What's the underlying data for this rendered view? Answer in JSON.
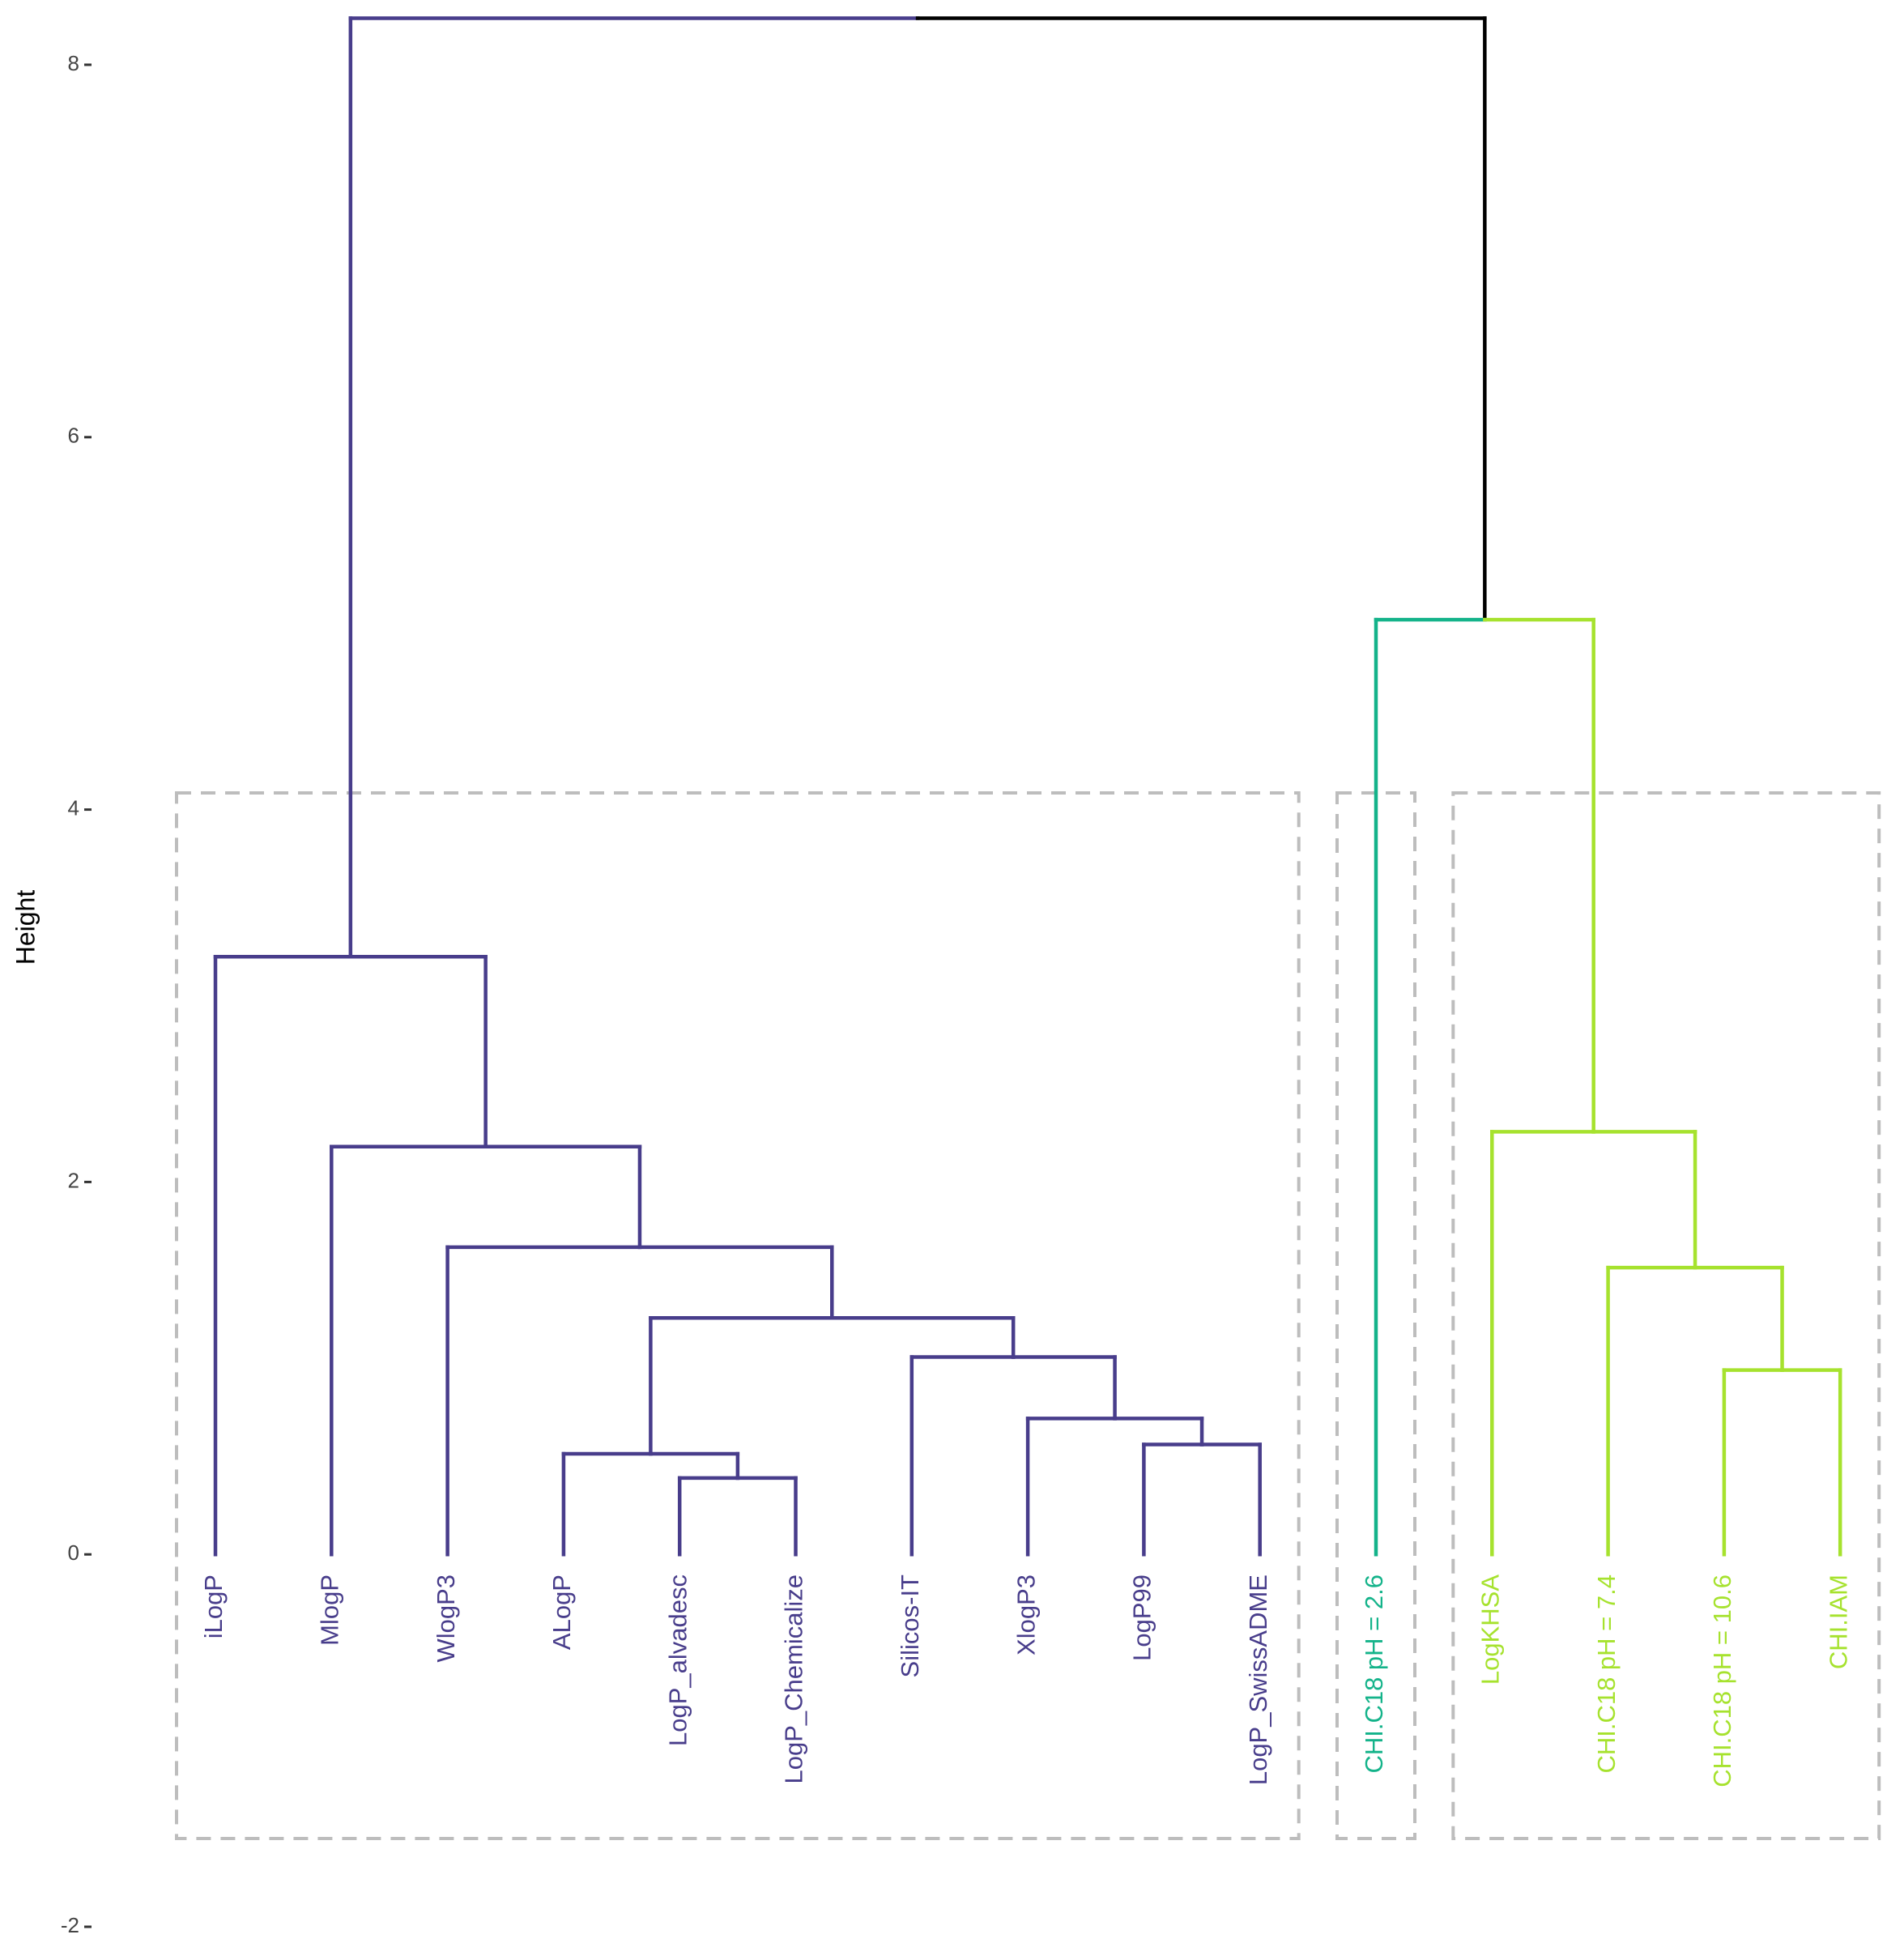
{
  "chart_data": {
    "type": "dendrogram",
    "ylabel": "Height",
    "ylim": [
      -2,
      8.3
    ],
    "yticks": [
      -2,
      0,
      2,
      4,
      6,
      8
    ],
    "link_color": "#000000",
    "tree": {
      "height": 8.25,
      "children": [
        {
          "color": "#483D8B",
          "height": 3.21,
          "children": [
            {
              "label": "iLogP"
            },
            {
              "height": 2.19,
              "children": [
                {
                  "label": "MlogP"
                },
                {
                  "height": 1.65,
                  "children": [
                    {
                      "label": "WlogP3"
                    },
                    {
                      "height": 1.27,
                      "children": [
                        {
                          "height": 0.54,
                          "children": [
                            {
                              "label": "ALogP"
                            },
                            {
                              "height": 0.41,
                              "children": [
                                {
                                  "label": "LogP_alvadesc"
                                },
                                {
                                  "label": "LogP_Chemicalize"
                                }
                              ]
                            }
                          ]
                        },
                        {
                          "height": 1.06,
                          "children": [
                            {
                              "label": "Silicos-IT"
                            },
                            {
                              "height": 0.73,
                              "children": [
                                {
                                  "label": "XlogP3"
                                },
                                {
                                  "height": 0.59,
                                  "children": [
                                    {
                                      "label": "LogP99"
                                    },
                                    {
                                      "label": "LogP_SwissADME"
                                    }
                                  ]
                                }
                              ]
                            }
                          ]
                        }
                      ]
                    }
                  ]
                }
              ]
            }
          ]
        },
        {
          "height": 5.02,
          "children": [
            {
              "label": "CHI.C18 pH = 2.6",
              "color": "#14B38A"
            },
            {
              "color": "#A6E22E",
              "height": 2.27,
              "children": [
                {
                  "label": "LogKHSA"
                },
                {
                  "height": 1.54,
                  "children": [
                    {
                      "label": "CHI.C18 pH = 7.4"
                    },
                    {
                      "height": 0.99,
                      "children": [
                        {
                          "label": "CHI.C18 pH = 10.6"
                        },
                        {
                          "label": "CHI.IAM"
                        }
                      ]
                    }
                  ]
                }
              ]
            }
          ]
        }
      ]
    }
  }
}
